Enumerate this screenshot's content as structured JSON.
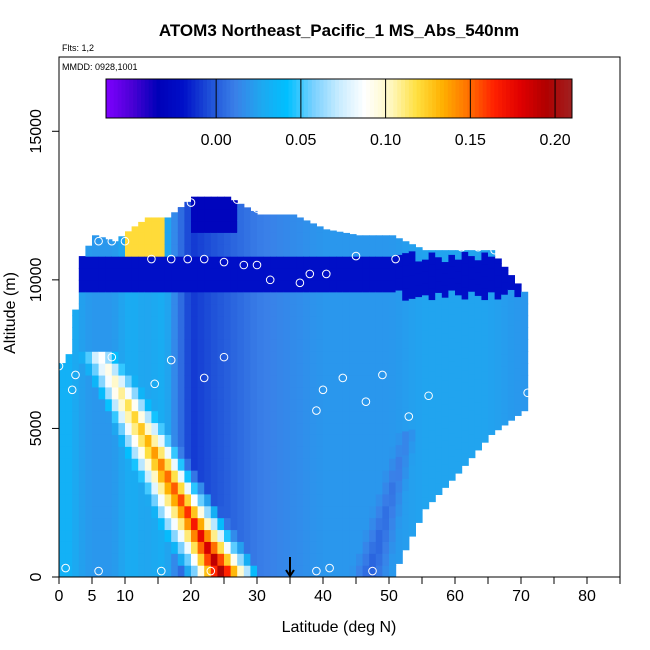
{
  "chart_data": {
    "type": "heatmap",
    "title": "ATOM3 Northeast_Pacific_1 MS_Abs_540nm",
    "flights_note": "Flts: 1,2",
    "date_note": "MMDD: 0928,1001",
    "xlabel": "Latitude (deg N)",
    "ylabel": "Altitude (m)",
    "xlim": [
      0,
      85
    ],
    "ylim": [
      0,
      17500
    ],
    "x_ticks": [
      0,
      5,
      10,
      20,
      30,
      40,
      50,
      60,
      70,
      80
    ],
    "x_minor_ticks": [
      15,
      25,
      35,
      45,
      55,
      65,
      75,
      85
    ],
    "y_ticks": [
      0,
      5000,
      10000,
      15000
    ],
    "colorbar": {
      "min": -0.065,
      "max": 0.21,
      "ticks": [
        0.0,
        0.05,
        0.1,
        0.15,
        0.2
      ],
      "tick_labels": [
        "0.00",
        "0.05",
        "0.10",
        "0.15",
        "0.20"
      ],
      "colors": [
        "#7f00ff",
        "#4b00d6",
        "#0000b8",
        "#0010c8",
        "#1e50d8",
        "#3a80e8",
        "#1ea8f0",
        "#00c0ff",
        "#78d0ff",
        "#c8ecff",
        "#ffffff",
        "#fff8c0",
        "#ffe040",
        "#ffb000",
        "#ff7000",
        "#ff2000",
        "#e00000",
        "#b00000",
        "#a02020"
      ]
    },
    "curtain_segments": [
      {
        "x": 0,
        "bottom": 0,
        "top": 7200,
        "value": 0.03
      },
      {
        "x": 1,
        "bottom": 0,
        "top": 7500,
        "value": 0.035
      },
      {
        "x": 2,
        "bottom": 0,
        "top": 9000,
        "value": 0.03
      },
      {
        "x": 3,
        "bottom": 0,
        "top": 10800,
        "value": 0.025
      },
      {
        "x": 5,
        "bottom": 0,
        "top": 11500,
        "value": 0.02
      },
      {
        "x": 8,
        "bottom": 0,
        "top": 11300,
        "value": 0.02
      },
      {
        "x": 11,
        "bottom": 0,
        "top": 11800,
        "value": 0.03
      },
      {
        "x": 13,
        "bottom": 0,
        "top": 12100,
        "value": 0.025
      },
      {
        "x": 16,
        "bottom": 0,
        "top": 12100,
        "value": 0.03
      },
      {
        "x": 20,
        "bottom": 0,
        "top": 12800,
        "value": -0.01
      },
      {
        "x": 25,
        "bottom": 0,
        "top": 12800,
        "value": 0.0
      },
      {
        "x": 30,
        "bottom": 0,
        "top": 12200,
        "value": 0.01
      },
      {
        "x": 35,
        "bottom": 0,
        "top": 12200,
        "value": 0.015
      },
      {
        "x": 40,
        "bottom": 0,
        "top": 11700,
        "value": 0.02
      },
      {
        "x": 45,
        "bottom": 0,
        "top": 11500,
        "value": 0.02
      },
      {
        "x": 50,
        "bottom": 0,
        "top": 11500,
        "value": 0.02
      },
      {
        "x": 55,
        "bottom": 2300,
        "top": 11000,
        "value": 0.025
      },
      {
        "x": 60,
        "bottom": 3500,
        "top": 11000,
        "value": 0.025
      },
      {
        "x": 65,
        "bottom": 4800,
        "top": 11000,
        "value": 0.025
      },
      {
        "x": 70,
        "bottom": 5600,
        "top": 9600,
        "value": 0.02
      }
    ],
    "plumes": [
      {
        "x_at_surface": 25,
        "x_at_top": 6,
        "top": 7500,
        "width_deg": 12,
        "peak_value": 0.2
      },
      {
        "x_at_surface": 47,
        "x_at_top": 53,
        "top": 5000,
        "width_deg": 6,
        "peak_value": 0.0
      }
    ],
    "upper_features": [
      {
        "x_start": 10,
        "x_end": 16,
        "bottom": 10900,
        "top": 12200,
        "value": 0.12
      },
      {
        "x_start": 20,
        "x_end": 27,
        "bottom": 11500,
        "top": 13000,
        "value": -0.03
      },
      {
        "x_start": 3,
        "x_end": 70,
        "bottom": 9500,
        "top": 10800,
        "value": -0.02
      }
    ],
    "sample_points": [
      {
        "x": 0,
        "y": 7100
      },
      {
        "x": 1,
        "y": 300
      },
      {
        "x": 2,
        "y": 6300
      },
      {
        "x": 2.5,
        "y": 11900
      },
      {
        "x": 2.5,
        "y": 6800
      },
      {
        "x": 4,
        "y": 11300
      },
      {
        "x": 6,
        "y": 11300
      },
      {
        "x": 6,
        "y": 200
      },
      {
        "x": 8,
        "y": 11300
      },
      {
        "x": 8,
        "y": 7400
      },
      {
        "x": 10,
        "y": 11300
      },
      {
        "x": 11,
        "y": 12400
      },
      {
        "x": 14,
        "y": 10700
      },
      {
        "x": 14.5,
        "y": 6500
      },
      {
        "x": 15.5,
        "y": 200
      },
      {
        "x": 17,
        "y": 10700
      },
      {
        "x": 17,
        "y": 7300
      },
      {
        "x": 19.5,
        "y": 10700
      },
      {
        "x": 20,
        "y": 12600
      },
      {
        "x": 22,
        "y": 10700
      },
      {
        "x": 22,
        "y": 6700
      },
      {
        "x": 23,
        "y": 200
      },
      {
        "x": 25,
        "y": 10600
      },
      {
        "x": 25,
        "y": 7400
      },
      {
        "x": 27,
        "y": 12700
      },
      {
        "x": 28,
        "y": 10500
      },
      {
        "x": 30,
        "y": 10500
      },
      {
        "x": 30,
        "y": 12400
      },
      {
        "x": 32,
        "y": 10000
      },
      {
        "x": 36.5,
        "y": 9900
      },
      {
        "x": 38,
        "y": 10200
      },
      {
        "x": 39,
        "y": 5600
      },
      {
        "x": 39,
        "y": 200
      },
      {
        "x": 40,
        "y": 6300
      },
      {
        "x": 40.5,
        "y": 10200
      },
      {
        "x": 41,
        "y": 300
      },
      {
        "x": 43,
        "y": 6700
      },
      {
        "x": 45,
        "y": 10800
      },
      {
        "x": 46.5,
        "y": 5900
      },
      {
        "x": 47.5,
        "y": 200
      },
      {
        "x": 49,
        "y": 6800
      },
      {
        "x": 51,
        "y": 10700
      },
      {
        "x": 53,
        "y": 5400
      },
      {
        "x": 53.5,
        "y": 300
      },
      {
        "x": 56,
        "y": 6100
      },
      {
        "x": 59,
        "y": 11200
      },
      {
        "x": 61,
        "y": 11100
      },
      {
        "x": 63.5,
        "y": 11100
      },
      {
        "x": 66,
        "y": 11000
      },
      {
        "x": 69,
        "y": 10900
      },
      {
        "x": 71,
        "y": 6200
      }
    ],
    "marker": {
      "x": 35,
      "type": "arrow"
    },
    "grid": false
  }
}
